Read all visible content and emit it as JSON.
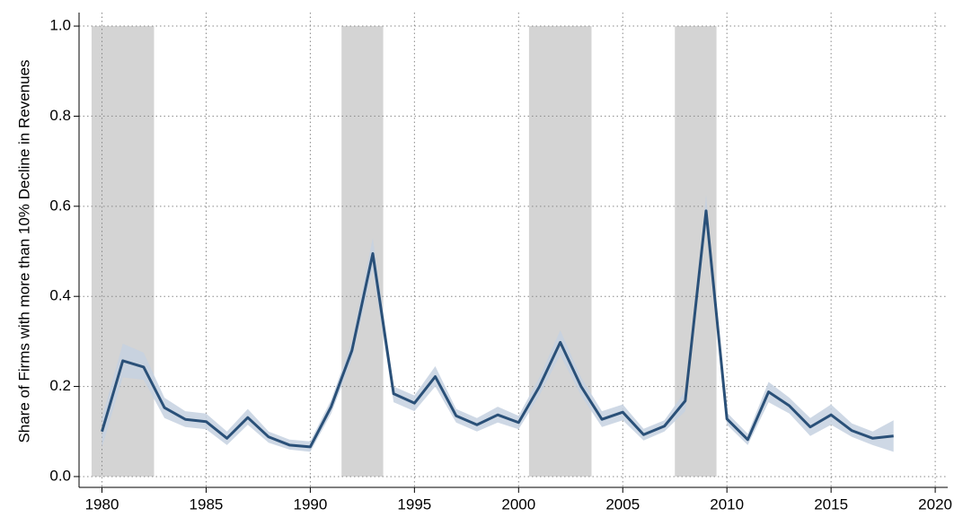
{
  "chart_data": {
    "type": "line",
    "y_label": "Share of Firms with more than 10% Decline in Revenues",
    "x": [
      1980,
      1981,
      1982,
      1983,
      1984,
      1985,
      1986,
      1987,
      1988,
      1989,
      1990,
      1991,
      1992,
      1993,
      1994,
      1995,
      1996,
      1997,
      1998,
      1999,
      2000,
      2001,
      2002,
      2003,
      2004,
      2005,
      2006,
      2007,
      2008,
      2009,
      2010,
      2011,
      2012,
      2013,
      2014,
      2015,
      2016,
      2017,
      2018
    ],
    "values": [
      0.1,
      0.257,
      0.243,
      0.153,
      0.127,
      0.122,
      0.085,
      0.131,
      0.088,
      0.07,
      0.066,
      0.155,
      0.28,
      0.495,
      0.184,
      0.163,
      0.222,
      0.135,
      0.115,
      0.137,
      0.12,
      0.2,
      0.298,
      0.2,
      0.127,
      0.143,
      0.093,
      0.112,
      0.168,
      0.59,
      0.128,
      0.082,
      0.188,
      0.157,
      0.11,
      0.137,
      0.102,
      0.085,
      0.09
    ],
    "band_lower": [
      0.065,
      0.22,
      0.215,
      0.13,
      0.11,
      0.105,
      0.07,
      0.115,
      0.075,
      0.06,
      0.055,
      0.14,
      0.26,
      0.46,
      0.165,
      0.145,
      0.2,
      0.12,
      0.1,
      0.12,
      0.105,
      0.18,
      0.27,
      0.18,
      0.11,
      0.125,
      0.08,
      0.1,
      0.145,
      0.555,
      0.115,
      0.07,
      0.165,
      0.14,
      0.09,
      0.115,
      0.088,
      0.07,
      0.055
    ],
    "band_upper": [
      0.13,
      0.295,
      0.275,
      0.175,
      0.145,
      0.14,
      0.1,
      0.15,
      0.1,
      0.082,
      0.078,
      0.17,
      0.3,
      0.53,
      0.2,
      0.18,
      0.245,
      0.15,
      0.13,
      0.155,
      0.135,
      0.22,
      0.325,
      0.22,
      0.145,
      0.16,
      0.106,
      0.125,
      0.19,
      0.625,
      0.142,
      0.095,
      0.21,
      0.175,
      0.13,
      0.16,
      0.118,
      0.1,
      0.125
    ],
    "color": "#2a5078",
    "band_color": "#c5d1e0",
    "shaded_ranges": [
      [
        1979.5,
        1982.5
      ],
      [
        1991.5,
        1993.5
      ],
      [
        2000.5,
        2003.5
      ],
      [
        2007.5,
        2009.5
      ]
    ],
    "shade_top": 1.0,
    "shade_color": "#d4d4d4",
    "xlim": [
      1978.9,
      2020.6
    ],
    "ylim": [
      -0.024,
      1.03
    ],
    "xticks": [
      1980,
      1985,
      1990,
      1995,
      2000,
      2005,
      2010,
      2015,
      2020
    ],
    "yticks": [
      {
        "value": 0,
        "label": "0.0"
      },
      0.2,
      0.4,
      0.6,
      0.8,
      {
        "value": 1,
        "label": "1.0"
      }
    ],
    "grid": true
  }
}
